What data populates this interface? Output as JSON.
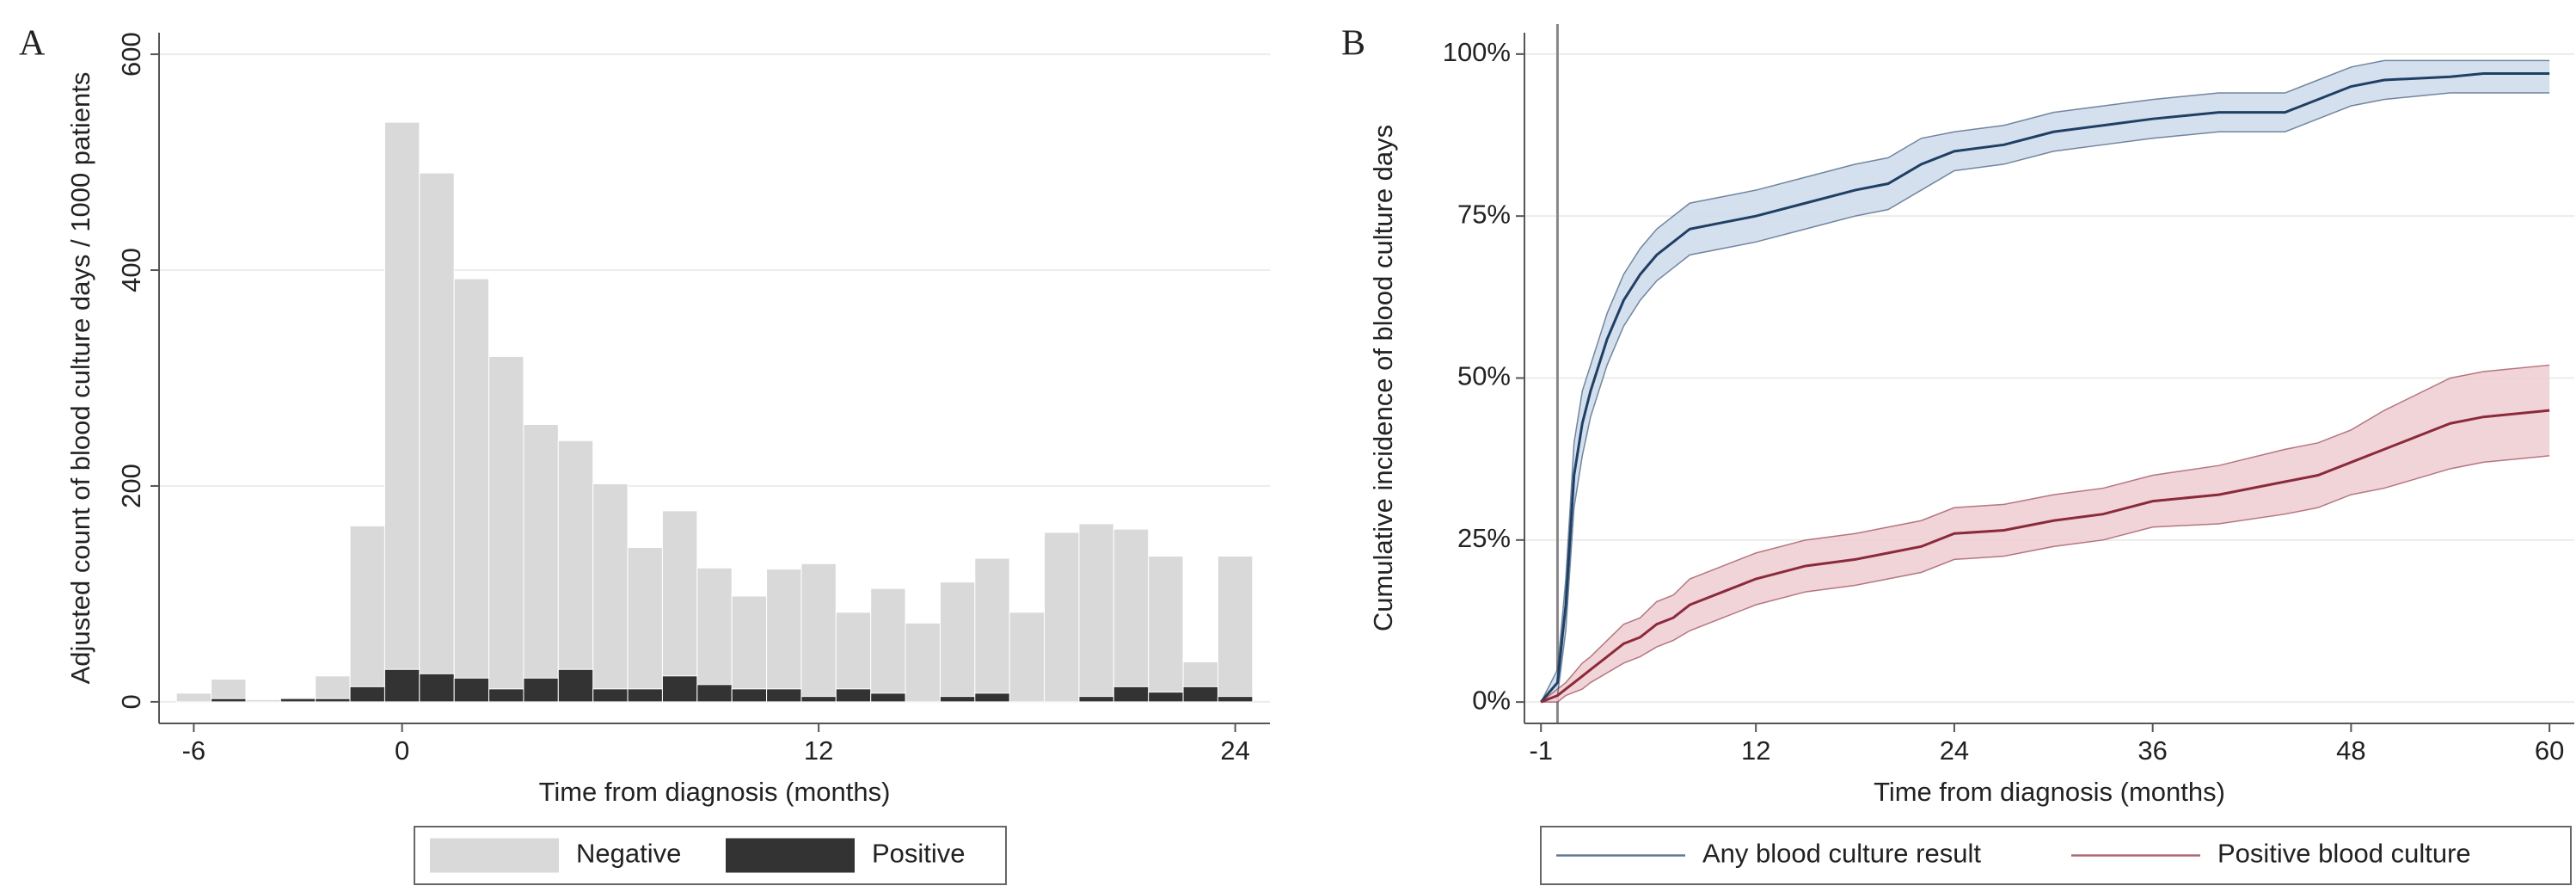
{
  "chart_data": [
    {
      "type": "bar",
      "panel_label": "A",
      "x_label": "Time from diagnosis (months)",
      "y_label": "Adjusted count of blood culture days / 1000 patients",
      "x": [
        -6,
        -5,
        -4,
        -3,
        -2,
        -1,
        0,
        1,
        2,
        3,
        4,
        5,
        6,
        7,
        8,
        9,
        10,
        11,
        12,
        13,
        14,
        15,
        16,
        17,
        18,
        19,
        20,
        21,
        22,
        23,
        24
      ],
      "series": [
        {
          "name": "Negative",
          "color": "#d9d9d9",
          "values": [
            8,
            21,
            2,
            4,
            24,
            163,
            537,
            490,
            392,
            320,
            257,
            242,
            202,
            143,
            177,
            124,
            98,
            123,
            128,
            83,
            105,
            73,
            111,
            133,
            83,
            157,
            165,
            160,
            135,
            37,
            135
          ]
        },
        {
          "name": "Positive",
          "color": "#333333",
          "values": [
            0,
            3,
            0,
            3,
            3,
            14,
            30,
            26,
            22,
            12,
            22,
            30,
            12,
            12,
            24,
            16,
            12,
            12,
            5,
            12,
            8,
            0,
            5,
            8,
            0,
            0,
            5,
            14,
            9,
            14,
            5
          ]
        }
      ],
      "xlim": [
        -7,
        25
      ],
      "ylim": [
        -20,
        620
      ],
      "xticks": [
        -6,
        0,
        12,
        24
      ],
      "yticks": [
        0,
        200,
        400,
        600
      ],
      "grid": true,
      "legend": "bottom"
    },
    {
      "type": "line",
      "panel_label": "B",
      "x_label": "Time from diagnosis (months)",
      "y_label": "Cumulative incidence of blood culture days",
      "x": [
        -1,
        0,
        0.5,
        1,
        1.5,
        2,
        3,
        4,
        5,
        6,
        7,
        8,
        10,
        12,
        15,
        18,
        20,
        22,
        24,
        27,
        30,
        33,
        36,
        40,
        44,
        46,
        48,
        50,
        54,
        56,
        60
      ],
      "series": [
        {
          "name": "Any blood culture result",
          "color": "#1f3f64",
          "band_color": "#cddbeb",
          "values": [
            0,
            3,
            15,
            35,
            43,
            48,
            56,
            62,
            66,
            69,
            71,
            73,
            74,
            75,
            77,
            79,
            80,
            83,
            85,
            86,
            88,
            89,
            90,
            91,
            91,
            93,
            95,
            96,
            96.5,
            97,
            97
          ],
          "ci_lower": [
            0,
            1,
            11,
            30,
            38,
            44,
            52,
            58,
            62,
            65,
            67,
            69,
            70,
            71,
            73,
            75,
            76,
            79,
            82,
            83,
            85,
            86,
            87,
            88,
            88,
            90,
            92,
            93,
            94,
            94,
            94
          ],
          "ci_upper": [
            0,
            5,
            19,
            40,
            48,
            52,
            60,
            66,
            70,
            73,
            75,
            77,
            78,
            79,
            81,
            83,
            84,
            87,
            88,
            89,
            91,
            92,
            93,
            94,
            94,
            96,
            98,
            99,
            99,
            99,
            99
          ]
        },
        {
          "name": "Positive blood culture",
          "color": "#8b2a3a",
          "band_color": "#eecdd1",
          "values": [
            0,
            1,
            2,
            3,
            4,
            5,
            7,
            9,
            10,
            12,
            13,
            15,
            17,
            19,
            21,
            22,
            23,
            24,
            26,
            26.5,
            28,
            29,
            31,
            32,
            34,
            35,
            37,
            39,
            43,
            44,
            45
          ],
          "ci_lower": [
            0,
            0,
            1,
            1.5,
            2,
            3,
            4.5,
            6,
            7,
            8.5,
            9.5,
            11,
            13,
            15,
            17,
            18,
            19,
            20,
            22,
            22.5,
            24,
            25,
            27,
            27.5,
            29,
            30,
            32,
            33,
            36,
            37,
            38
          ],
          "ci_upper": [
            0,
            2,
            3,
            4.5,
            6,
            7,
            9.5,
            12,
            13,
            15.5,
            16.5,
            19,
            21,
            23,
            25,
            26,
            27,
            28,
            30,
            30.5,
            32,
            33,
            35,
            36.5,
            39,
            40,
            42,
            45,
            50,
            51,
            52
          ]
        }
      ],
      "xlim": [
        -2,
        61.5
      ],
      "ylim": [
        -3.3,
        103.3
      ],
      "xticks": [
        -1,
        12,
        24,
        36,
        48,
        60
      ],
      "yticks": [
        {
          "value": 0,
          "label": "0%"
        },
        {
          "value": 25,
          "label": "25%"
        },
        {
          "value": 50,
          "label": "50%"
        },
        {
          "value": 75,
          "label": "75%"
        },
        {
          "value": 100,
          "label": "100%"
        }
      ],
      "xline": 0,
      "grid": true,
      "legend": "bottom"
    }
  ]
}
